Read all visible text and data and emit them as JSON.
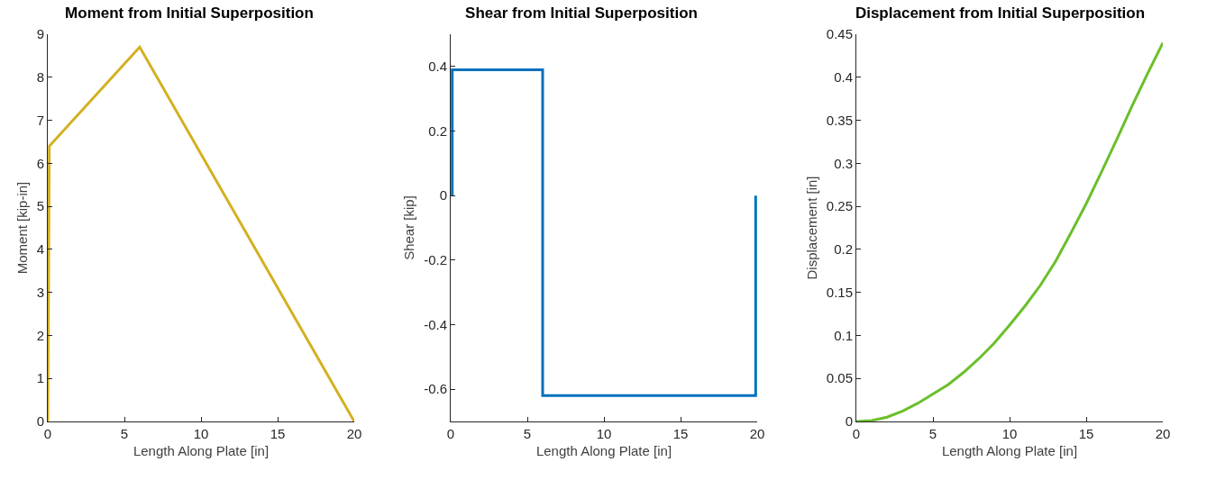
{
  "chart_data": [
    {
      "type": "line",
      "title": "Moment from Initial Superposition",
      "xlabel": "Length Along Plate [in]",
      "ylabel": "Moment [kip-in]",
      "x": [
        0,
        0.1,
        6,
        20
      ],
      "values": [
        0,
        6.4,
        8.7,
        0
      ],
      "color": "#d4b021",
      "xlim": [
        0,
        20
      ],
      "xticks": [
        0,
        5,
        10,
        15,
        20
      ],
      "ylim": [
        0,
        9
      ],
      "yticks": [
        0,
        1,
        2,
        3,
        4,
        5,
        6,
        7,
        8,
        9
      ],
      "grid": false
    },
    {
      "type": "line",
      "title": "Shear from Initial Superposition",
      "xlabel": "Length Along Plate [in]",
      "ylabel": "Shear [kip]",
      "x": [
        0.1,
        0.1,
        6,
        6,
        19.9,
        19.9
      ],
      "values": [
        0,
        0.39,
        0.39,
        -0.62,
        -0.62,
        0
      ],
      "color": "#0072bd",
      "xlim": [
        0,
        20
      ],
      "xticks": [
        0,
        5,
        10,
        15,
        20
      ],
      "ylim": [
        -0.7,
        0.5
      ],
      "yticks": [
        -0.6,
        -0.4,
        -0.2,
        0,
        0.2,
        0.4
      ],
      "grid": false
    },
    {
      "type": "line",
      "title": "Displacement from Initial Superposition",
      "xlabel": "Length Along Plate [in]",
      "ylabel": "Displacement [in]",
      "x": [
        0,
        1,
        2,
        3,
        4,
        5,
        6,
        7,
        8,
        9,
        10,
        11,
        12,
        13,
        14,
        15,
        16,
        17,
        18,
        19,
        20
      ],
      "values": [
        0,
        0.001,
        0.005,
        0.012,
        0.021,
        0.032,
        0.043,
        0.057,
        0.073,
        0.091,
        0.112,
        0.134,
        0.158,
        0.186,
        0.219,
        0.253,
        0.29,
        0.328,
        0.367,
        0.404,
        0.44
      ],
      "color": "#6abf2a",
      "xlim": [
        0,
        20
      ],
      "xticks": [
        0,
        5,
        10,
        15,
        20
      ],
      "ylim": [
        0,
        0.45
      ],
      "yticks": [
        0,
        0.05,
        0.1,
        0.15,
        0.2,
        0.25,
        0.3,
        0.35,
        0.4,
        0.45
      ],
      "grid": false
    }
  ]
}
